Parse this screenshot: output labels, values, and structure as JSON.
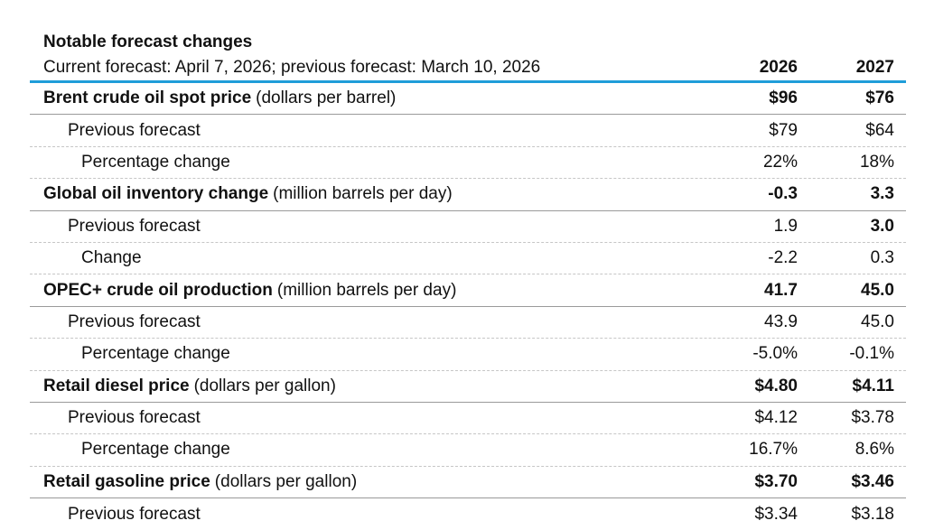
{
  "header": {
    "title": "Notable forecast changes",
    "subtitle": "Current forecast: April 7, 2026; previous forecast:  March 10, 2026"
  },
  "columns": [
    "2026",
    "2027"
  ],
  "accent_color": "#1f9dd9",
  "sections": [
    {
      "label": "Brent crude oil spot price",
      "unit": "(dollars per barrel)",
      "values": [
        "$96",
        "$76"
      ],
      "rows": [
        {
          "label": "Previous forecast",
          "values": [
            "$79",
            "$64"
          ]
        },
        {
          "label": "Percentage change",
          "values": [
            "22%",
            "18%"
          ]
        }
      ]
    },
    {
      "label": "Global oil inventory change",
      "unit": "(million barrels per day)",
      "values": [
        "-0.3",
        "3.3"
      ],
      "rows": [
        {
          "label": "Previous forecast",
          "values": [
            "1.9",
            "3.0"
          ]
        },
        {
          "label": "Change",
          "values": [
            "-2.2",
            "0.3"
          ]
        }
      ]
    },
    {
      "label": "OPEC+ crude oil production",
      "unit": "(million barrels per day)",
      "values": [
        "41.7",
        "45.0"
      ],
      "rows": [
        {
          "label": "Previous forecast",
          "values": [
            "43.9",
            "45.0"
          ]
        },
        {
          "label": "Percentage change",
          "values": [
            "-5.0%",
            "-0.1%"
          ]
        }
      ]
    },
    {
      "label": "Retail diesel price",
      "unit": "(dollars per gallon)",
      "values": [
        "$4.80",
        "$4.11"
      ],
      "rows": [
        {
          "label": "Previous forecast",
          "values": [
            "$4.12",
            "$3.78"
          ]
        },
        {
          "label": "Percentage change",
          "values": [
            "16.7%",
            "8.6%"
          ]
        }
      ]
    },
    {
      "label": "Retail gasoline price",
      "unit": "(dollars per gallon)",
      "values": [
        "$3.70",
        "$3.46"
      ],
      "rows": [
        {
          "label": "Previous forecast",
          "values": [
            "$3.34",
            "$3.18"
          ]
        }
      ]
    }
  ]
}
